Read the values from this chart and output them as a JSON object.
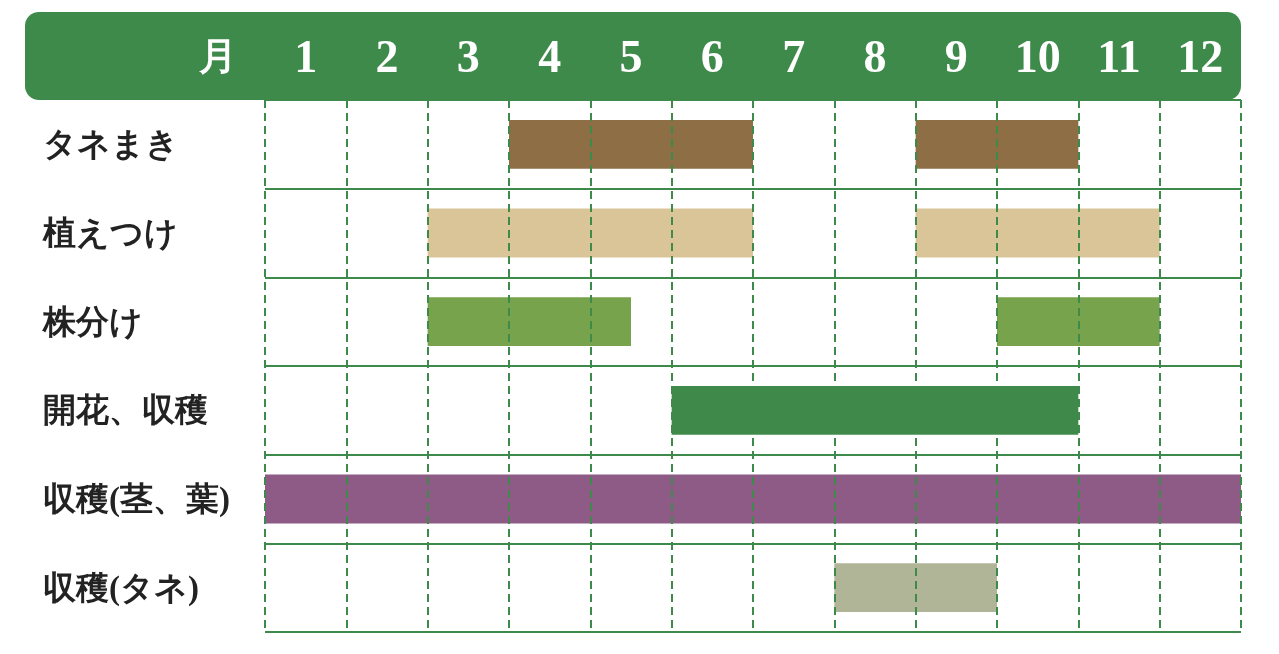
{
  "chart_data": {
    "type": "bar",
    "orientation": "horizontal",
    "xlabel": "月",
    "categories": [
      "タネまき",
      "植えつけ",
      "株分け",
      "開花、収穫",
      "収穫(茎、葉)",
      "収穫(タネ)"
    ],
    "series": [
      {
        "colors": [
          "#8d6e45",
          "#d9c598",
          "#76a34b",
          "#3f8a4a",
          "#8e5b87",
          "#b0b597"
        ],
        "base": [
          3.5,
          2.5,
          2.5,
          5.5,
          0.5,
          7.5
        ],
        "values": [
          3,
          4,
          2.5,
          5,
          12,
          2
        ]
      },
      {
        "colors": [
          "#8d6e45",
          "#d9c598",
          "#76a34b",
          null,
          null,
          null
        ],
        "base": [
          8.5,
          8.5,
          9.5,
          null,
          null,
          null
        ],
        "values": [
          2,
          3,
          2,
          null,
          null,
          null
        ]
      }
    ],
    "xlim": [
      0.5,
      12.5
    ],
    "xticks": [
      1,
      2,
      3,
      4,
      5,
      6,
      7,
      8,
      9,
      10,
      11,
      12
    ],
    "grid": "y",
    "ref_lines": [
      {
        "axis": "x",
        "value": 0.5,
        "color": "#3e8a4a",
        "line_style": "dashed"
      },
      {
        "axis": "x",
        "value": 1.5,
        "color": "#3e8a4a",
        "line_style": "dashed"
      },
      {
        "axis": "x",
        "value": 2.5,
        "color": "#3e8a4a",
        "line_style": "dashed"
      },
      {
        "axis": "x",
        "value": 3.5,
        "color": "#3e8a4a",
        "line_style": "dashed"
      },
      {
        "axis": "x",
        "value": 4.5,
        "color": "#3e8a4a",
        "line_style": "dashed"
      },
      {
        "axis": "x",
        "value": 5.5,
        "color": "#3e8a4a",
        "line_style": "dashed"
      },
      {
        "axis": "x",
        "value": 6.5,
        "color": "#3e8a4a",
        "line_style": "dashed"
      },
      {
        "axis": "x",
        "value": 7.5,
        "color": "#3e8a4a",
        "line_style": "dashed"
      },
      {
        "axis": "x",
        "value": 8.5,
        "color": "#3e8a4a",
        "line_style": "dashed"
      },
      {
        "axis": "x",
        "value": 9.5,
        "color": "#3e8a4a",
        "line_style": "dashed"
      },
      {
        "axis": "x",
        "value": 10.5,
        "color": "#3e8a4a",
        "line_style": "dashed"
      },
      {
        "axis": "x",
        "value": 11.5,
        "color": "#3e8a4a",
        "line_style": "dashed"
      },
      {
        "axis": "x",
        "value": 12.5,
        "color": "#3e8a4a",
        "line_style": "dashed"
      }
    ]
  }
}
